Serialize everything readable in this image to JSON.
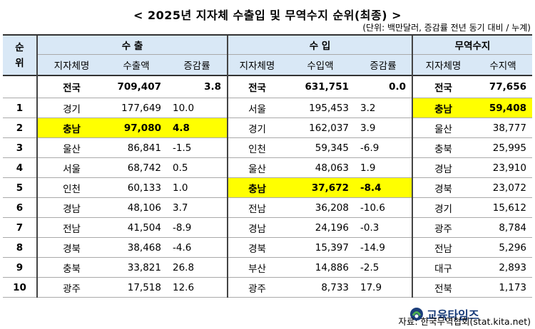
{
  "title": "< 2025년 지자체 수출입 및 무역수지 순위(최종) >",
  "unit_note": "(단위: 백만달러, 증감률 전년 동기 대비 / 누계)",
  "headers": {
    "rank": "순위",
    "export_group": "수 출",
    "import_group": "수 입",
    "trade_group": "무역수지",
    "region": "지자체명",
    "export_amount": "수출액",
    "growth": "증감률",
    "import_amount": "수입액",
    "balance": "수지액"
  },
  "total": {
    "export": {
      "region": "전국",
      "amount": "709,407",
      "growth": "3.8"
    },
    "import": {
      "region": "전국",
      "amount": "631,751",
      "growth": "0.0"
    },
    "trade": {
      "region": "전국",
      "amount": "77,656"
    }
  },
  "rows": [
    {
      "rank": "1",
      "export": {
        "region": "경기",
        "amount": "177,649",
        "growth": "10.0"
      },
      "import": {
        "region": "서울",
        "amount": "195,453",
        "growth": "3.2"
      },
      "trade": {
        "region": "충남",
        "amount": "59,408"
      }
    },
    {
      "rank": "2",
      "export": {
        "region": "충남",
        "amount": "97,080",
        "growth": "4.8"
      },
      "import": {
        "region": "경기",
        "amount": "162,037",
        "growth": "3.9"
      },
      "trade": {
        "region": "울산",
        "amount": "38,777"
      }
    },
    {
      "rank": "3",
      "export": {
        "region": "울산",
        "amount": "86,841",
        "growth": "-1.5"
      },
      "import": {
        "region": "인천",
        "amount": "59,345",
        "growth": "-6.9"
      },
      "trade": {
        "region": "충북",
        "amount": "25,995"
      }
    },
    {
      "rank": "4",
      "export": {
        "region": "서울",
        "amount": "68,742",
        "growth": "0.5"
      },
      "import": {
        "region": "울산",
        "amount": "48,063",
        "growth": "1.9"
      },
      "trade": {
        "region": "경남",
        "amount": "23,910"
      }
    },
    {
      "rank": "5",
      "export": {
        "region": "인천",
        "amount": "60,133",
        "growth": "1.0"
      },
      "import": {
        "region": "충남",
        "amount": "37,672",
        "growth": "-8.4"
      },
      "trade": {
        "region": "경북",
        "amount": "23,072"
      }
    },
    {
      "rank": "6",
      "export": {
        "region": "경남",
        "amount": "48,106",
        "growth": "3.7"
      },
      "import": {
        "region": "전남",
        "amount": "36,208",
        "growth": "-10.6"
      },
      "trade": {
        "region": "경기",
        "amount": "15,612"
      }
    },
    {
      "rank": "7",
      "export": {
        "region": "전남",
        "amount": "41,504",
        "growth": "-8.9"
      },
      "import": {
        "region": "경남",
        "amount": "24,196",
        "growth": "-0.3"
      },
      "trade": {
        "region": "광주",
        "amount": "8,784"
      }
    },
    {
      "rank": "8",
      "export": {
        "region": "경북",
        "amount": "38,468",
        "growth": "-4.6"
      },
      "import": {
        "region": "경북",
        "amount": "15,397",
        "growth": "-14.9"
      },
      "trade": {
        "region": "전남",
        "amount": "5,296"
      }
    },
    {
      "rank": "9",
      "export": {
        "region": "충북",
        "amount": "33,821",
        "growth": "26.8"
      },
      "import": {
        "region": "부산",
        "amount": "14,886",
        "growth": "-2.5"
      },
      "trade": {
        "region": "대구",
        "amount": "2,893"
      }
    },
    {
      "rank": "10",
      "export": {
        "region": "광주",
        "amount": "17,518",
        "growth": "12.6"
      },
      "import": {
        "region": "광주",
        "amount": "8,733",
        "growth": "17.9"
      },
      "trade": {
        "region": "전북",
        "amount": "1,173"
      }
    }
  ],
  "source": "자료: 한국무역협회(stat.kita.net)",
  "logo_text": "교육타임즈",
  "colors": {
    "header_bg": "#d9e8f6",
    "highlight": "#ffff00",
    "logo": "#1a3d7a"
  }
}
